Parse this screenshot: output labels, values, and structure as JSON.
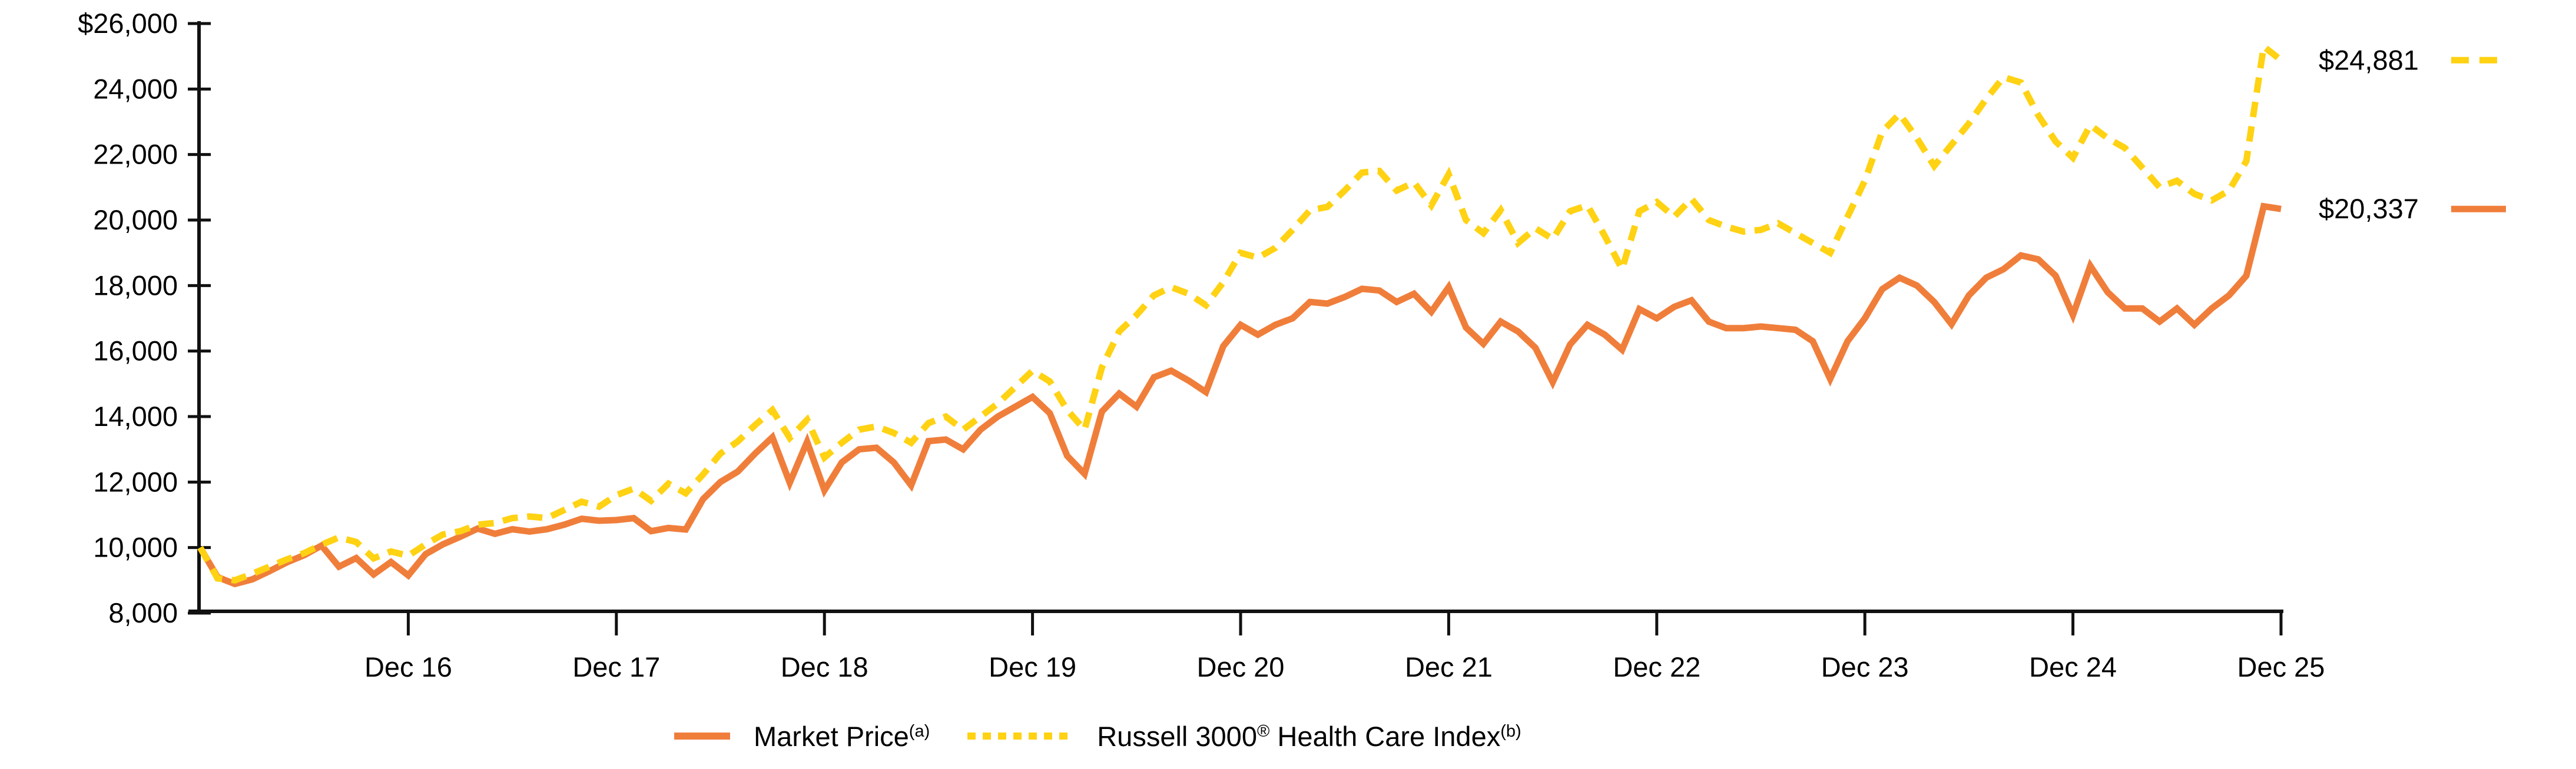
{
  "chart_data": {
    "type": "line",
    "title": "",
    "xlabel": "",
    "ylabel": "",
    "x_unit": "monthly points from Dec 2015 to Dec 2025",
    "x_tick_labels": [
      "Dec 16",
      "Dec 17",
      "Dec 18",
      "Dec 19",
      "Dec 20",
      "Dec 21",
      "Dec 22",
      "Dec 23",
      "Dec 24",
      "Dec 25"
    ],
    "x_first_tick_index": 12,
    "x_points_per_tick": 12,
    "ylim": [
      8000,
      26000
    ],
    "ytick_values": [
      26000,
      24000,
      22000,
      20000,
      18000,
      16000,
      14000,
      12000,
      10000,
      8000
    ],
    "ytick_labels": [
      "$26,000",
      "24,000",
      "22,000",
      "20,000",
      "18,000",
      "16,000",
      "14,000",
      "12,000",
      "10,000",
      "8,000"
    ],
    "grid": false,
    "legend_position": "bottom",
    "series": [
      {
        "name": "Market Price",
        "label_parts": [
          {
            "t": "Market Price"
          },
          {
            "sup": "(a)"
          }
        ],
        "style": "solid",
        "color": "#F07E3B",
        "end_label": "$20,337",
        "values": [
          10000,
          9100,
          8890,
          9030,
          9280,
          9550,
          9770,
          10060,
          9420,
          9680,
          9180,
          9560,
          9150,
          9800,
          10100,
          10330,
          10580,
          10420,
          10560,
          10490,
          10560,
          10700,
          10880,
          10820,
          10840,
          10900,
          10500,
          10600,
          10550,
          11480,
          12000,
          12320,
          12870,
          13370,
          11980,
          13230,
          11750,
          12600,
          13000,
          13050,
          12600,
          11900,
          13250,
          13300,
          13000,
          13600,
          14000,
          14300,
          14600,
          14100,
          12800,
          12250,
          14150,
          14700,
          14300,
          15200,
          15400,
          15100,
          14750,
          16150,
          16800,
          16500,
          16800,
          17000,
          17500,
          17450,
          17650,
          17900,
          17850,
          17500,
          17750,
          17200,
          17950,
          16720,
          16220,
          16900,
          16600,
          16100,
          15050,
          16200,
          16800,
          16500,
          16040,
          17280,
          17000,
          17350,
          17550,
          16900,
          16700,
          16700,
          16750,
          16700,
          16650,
          16300,
          15150,
          16300,
          17000,
          17890,
          18240,
          18000,
          17500,
          16820,
          17700,
          18240,
          18500,
          18920,
          18800,
          18300,
          17100,
          18600,
          17800,
          17300,
          17300,
          16900,
          17300,
          16800,
          17300,
          17700,
          18300,
          20420,
          20337
        ]
      },
      {
        "name": "Russell 3000 Health Care Index",
        "label_parts": [
          {
            "t": "Russell 3000"
          },
          {
            "sup": "®"
          },
          {
            "t": " Health Care Index"
          },
          {
            "sup": "(b)"
          }
        ],
        "style": "dashed",
        "color": "#FFD213",
        "end_label": "$24,881",
        "values": [
          10000,
          9060,
          9000,
          9200,
          9420,
          9640,
          9830,
          10090,
          10310,
          10170,
          9670,
          9880,
          9750,
          10100,
          10400,
          10500,
          10700,
          10750,
          10900,
          10950,
          10900,
          11150,
          11400,
          11250,
          11600,
          11800,
          11430,
          11950,
          11660,
          12230,
          12870,
          13240,
          13740,
          14200,
          13350,
          13900,
          12750,
          13200,
          13600,
          13700,
          13500,
          13200,
          13800,
          14000,
          13600,
          14000,
          14400,
          14900,
          15400,
          15070,
          14200,
          13600,
          15500,
          16600,
          17100,
          17700,
          17950,
          17750,
          17400,
          18100,
          19000,
          18850,
          19150,
          19700,
          20300,
          20400,
          20900,
          21450,
          21500,
          20900,
          21150,
          20450,
          21400,
          20000,
          19600,
          20300,
          19300,
          19750,
          19420,
          20270,
          20450,
          19520,
          18500,
          20270,
          20550,
          20100,
          20650,
          20000,
          19800,
          19650,
          19700,
          19900,
          19600,
          19300,
          19000,
          20100,
          21200,
          22700,
          23240,
          22500,
          21650,
          22300,
          22950,
          23700,
          24360,
          24200,
          23200,
          22400,
          21900,
          22900,
          22500,
          22200,
          21600,
          21000,
          21200,
          20800,
          20600,
          20900,
          21800,
          25300,
          24881
        ]
      }
    ],
    "axis_color": "#111111"
  }
}
